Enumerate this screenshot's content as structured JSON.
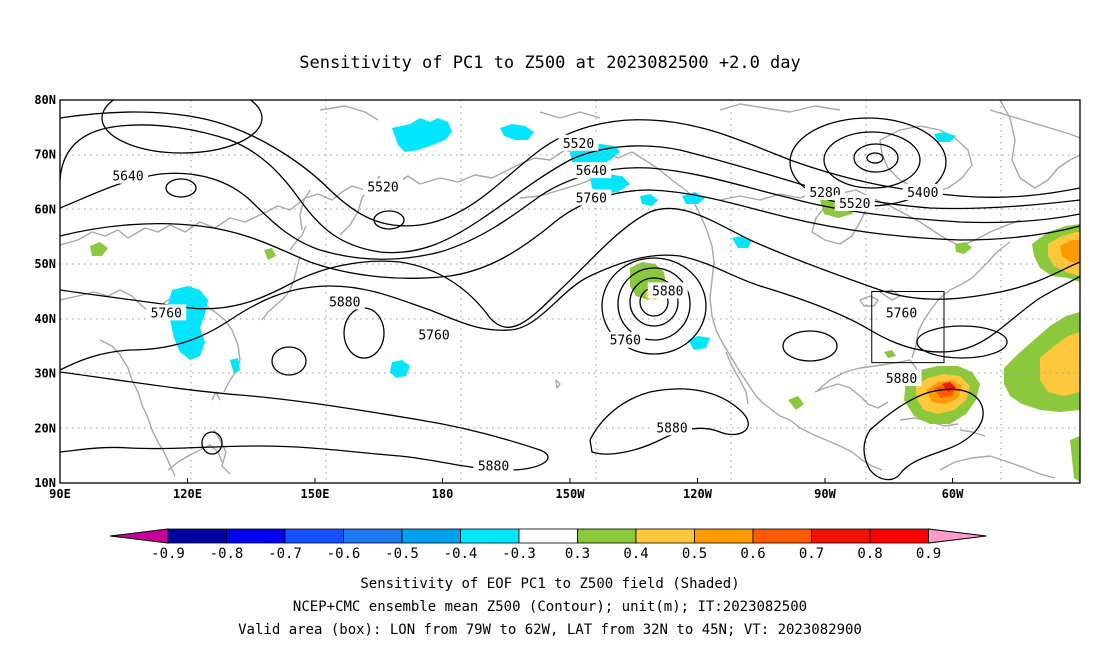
{
  "title": "Sensitivity of PC1 to Z500 at 2023082500 +2.0 day",
  "map": {
    "lon_labels": [
      "90E",
      "120E",
      "150E",
      "180",
      "150W",
      "120W",
      "90W",
      "60W"
    ],
    "lat_labels": [
      "80N",
      "70N",
      "60N",
      "50N",
      "40N",
      "30N",
      "20N",
      "10N"
    ],
    "valid_box": {
      "lon_range": [
        -79,
        -62
      ],
      "lat_range": [
        32,
        45
      ]
    },
    "contour_labels": [
      {
        "text": "5640",
        "lon": 106,
        "lat": 66
      },
      {
        "text": "5520",
        "lon": 166,
        "lat": 64
      },
      {
        "text": "5520",
        "lon": -148,
        "lat": 72
      },
      {
        "text": "5640",
        "lon": -145,
        "lat": 67
      },
      {
        "text": "5760",
        "lon": -145,
        "lat": 62
      },
      {
        "text": "5280",
        "lon": -90,
        "lat": 63
      },
      {
        "text": "5520",
        "lon": -83,
        "lat": 61
      },
      {
        "text": "5400",
        "lon": -67,
        "lat": 63
      },
      {
        "text": "5880",
        "lon": -127,
        "lat": 45
      },
      {
        "text": "5760",
        "lon": -72,
        "lat": 41
      },
      {
        "text": "5880",
        "lon": -72,
        "lat": 29
      },
      {
        "text": "5880",
        "lon": -126,
        "lat": 20
      },
      {
        "text": "5880",
        "lon": 157,
        "lat": 43
      },
      {
        "text": "5760",
        "lon": 115,
        "lat": 41
      },
      {
        "text": "5760",
        "lon": 178,
        "lat": 37
      },
      {
        "text": "5760",
        "lon": -137,
        "lat": 36
      },
      {
        "text": "5880",
        "lon": -168,
        "lat": 13
      }
    ]
  },
  "colorbar": {
    "labels": [
      "-0.9",
      "-0.8",
      "-0.7",
      "-0.6",
      "-0.5",
      "-0.4",
      "-0.3",
      "0.3",
      "0.4",
      "0.5",
      "0.6",
      "0.7",
      "0.8",
      "0.9"
    ],
    "colors": [
      "#0000a0",
      "#0000f0",
      "#1450ff",
      "#1e78f0",
      "#00a0f0",
      "#00e6ff",
      "#ffffff",
      "#8cc83c",
      "#ffc83c",
      "#ff9b00",
      "#ff5a00",
      "#f01400",
      "#ff0000"
    ],
    "under_color": "#c8009b",
    "over_color": "#ff9bc8"
  },
  "caption": [
    "Sensitivity of EOF PC1 to Z500 field (Shaded)",
    "NCEP+CMC ensemble mean Z500 (Contour); unit(m); IT:2023082500",
    "Valid area (box): LON from 79W to 62W, LAT from 32N to 45N; VT: 2023082900"
  ]
}
